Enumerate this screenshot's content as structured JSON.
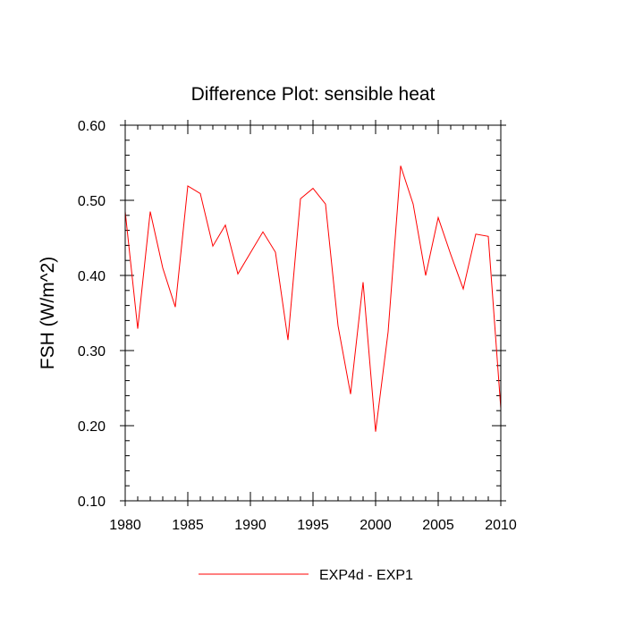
{
  "chart_data": {
    "type": "line",
    "title": "Difference Plot: sensible heat",
    "xlabel": "",
    "ylabel": "FSH  (W/m^2)",
    "xlim": [
      1980,
      2010
    ],
    "ylim": [
      0.1,
      0.6
    ],
    "x_ticks": [
      "1980",
      "1985",
      "1990",
      "1995",
      "2000",
      "2005",
      "2010"
    ],
    "y_ticks": [
      "0.10",
      "0.20",
      "0.30",
      "0.40",
      "0.50",
      "0.60"
    ],
    "grid": false,
    "legend_position": "bottom",
    "series": [
      {
        "name": "EXP4d - EXP1",
        "color": "#ff0000",
        "x": [
          1980,
          1981,
          1982,
          1983,
          1984,
          1985,
          1986,
          1987,
          1988,
          1989,
          1990,
          1991,
          1992,
          1993,
          1994,
          1995,
          1996,
          1997,
          1998,
          1999,
          2000,
          2001,
          2002,
          2003,
          2004,
          2005,
          2006,
          2007,
          2008,
          2009,
          2010
        ],
        "values": [
          0.485,
          0.329,
          0.485,
          0.41,
          0.358,
          0.519,
          0.509,
          0.439,
          0.467,
          0.402,
          0.43,
          0.458,
          0.431,
          0.314,
          0.502,
          0.516,
          0.495,
          0.333,
          0.242,
          0.391,
          0.192,
          0.325,
          0.546,
          0.495,
          0.4,
          0.477,
          0.428,
          0.382,
          0.455,
          0.452,
          0.223
        ]
      }
    ]
  }
}
